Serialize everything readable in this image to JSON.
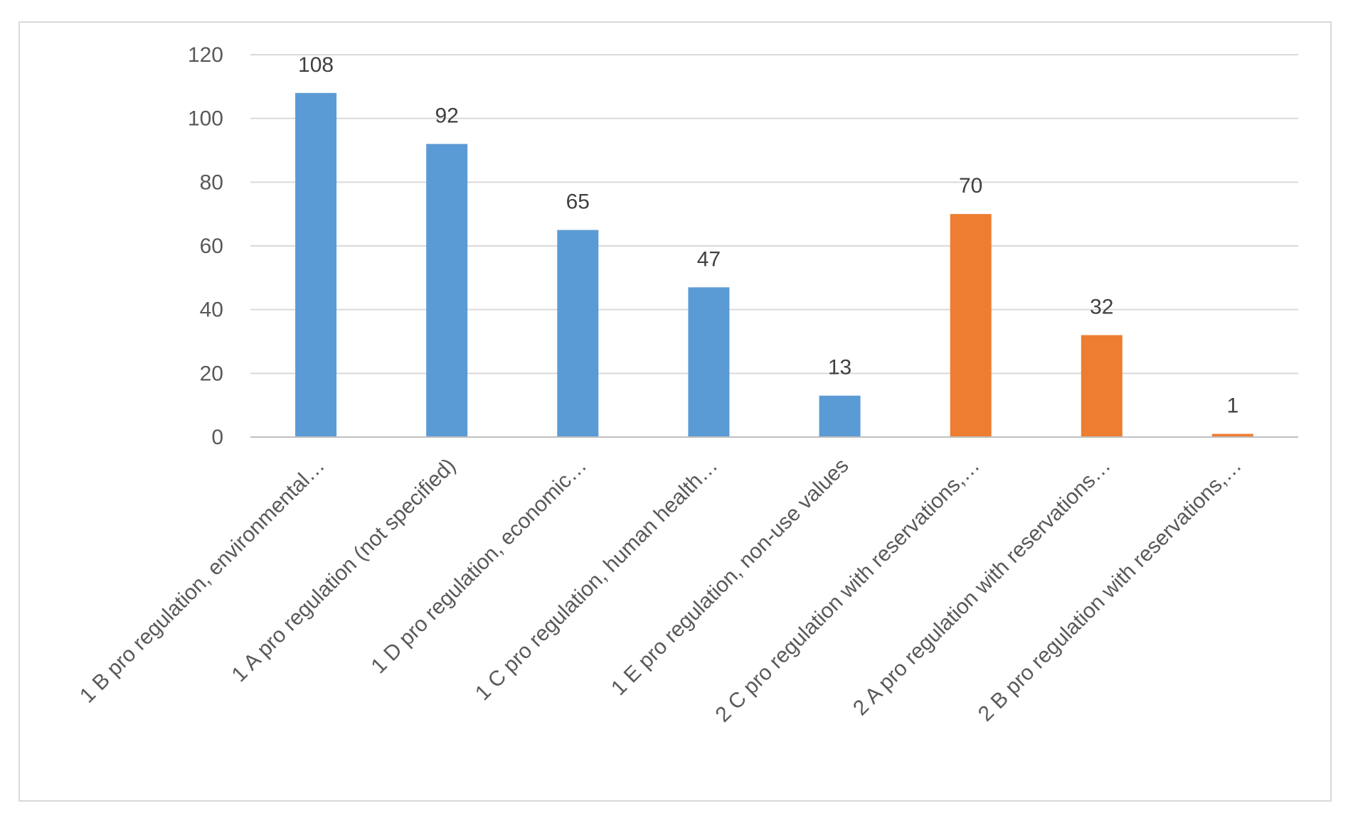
{
  "chart_data": {
    "type": "bar",
    "title": "",
    "xlabel": "",
    "ylabel": "",
    "ylim": [
      0,
      120
    ],
    "yticks": [
      0,
      20,
      40,
      60,
      80,
      100,
      120
    ],
    "grid": true,
    "legend": "none",
    "categories": [
      "1 B pro regulation, environmental…",
      "1 A pro regulation (not specified)",
      "1 D pro regulation, economic…",
      "1 C pro regulation, human health…",
      "1 E pro regulation, non-use values",
      "2 C pro regulation with reservations,…",
      "2 A pro regulation with reservations…",
      "2 B pro regulation with reservations,…"
    ],
    "values": [
      108,
      92,
      65,
      47,
      13,
      70,
      32,
      1
    ],
    "bar_colors": [
      "#5b9bd5",
      "#5b9bd5",
      "#5b9bd5",
      "#5b9bd5",
      "#5b9bd5",
      "#ed7d31",
      "#ed7d31",
      "#ed7d31"
    ],
    "gridline_color": "#d9d9d9",
    "axis_color": "#bfbfbf"
  }
}
